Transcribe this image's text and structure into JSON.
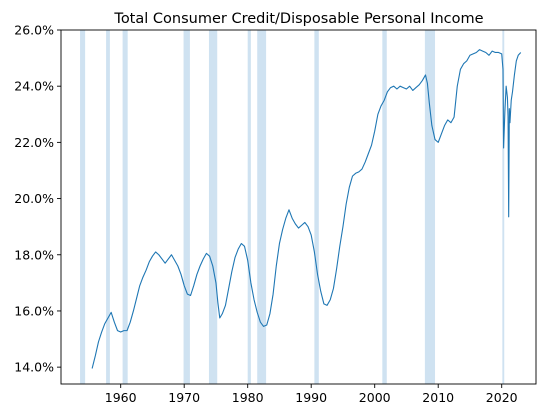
{
  "chart_data": {
    "type": "line",
    "title": "Total Consumer Credit/Disposable Personal Income",
    "xlabel": "",
    "ylabel": "",
    "xlim": [
      1950.6,
      2025.4
    ],
    "ylim": [
      13.4,
      26.0
    ],
    "x_ticks": [
      1960,
      1970,
      1980,
      1990,
      2000,
      2010,
      2020
    ],
    "x_tick_labels": [
      "1960",
      "1970",
      "1980",
      "1990",
      "2000",
      "2010",
      "2020"
    ],
    "y_ticks": [
      14,
      16,
      18,
      20,
      22,
      24,
      26
    ],
    "y_tick_labels": [
      "14.0%",
      "16.0%",
      "18.0%",
      "20.0%",
      "22.0%",
      "24.0%",
      "26.0%"
    ],
    "grid": false,
    "legend": "none",
    "colors": {
      "line": "#1f77b4",
      "recession": "#cfe2f1",
      "axes": "#000000"
    },
    "recessions": [
      [
        1953.6,
        1954.4
      ],
      [
        1957.7,
        1958.3
      ],
      [
        1960.3,
        1961.1
      ],
      [
        1969.9,
        1970.9
      ],
      [
        1973.9,
        1975.2
      ],
      [
        1980.0,
        1980.5
      ],
      [
        1981.5,
        1982.9
      ],
      [
        1990.5,
        1991.2
      ],
      [
        2001.2,
        2001.9
      ],
      [
        2007.9,
        2009.5
      ],
      [
        2020.1,
        2020.4
      ]
    ],
    "series": [
      {
        "x": [
          1955.5,
          1956.0,
          1956.5,
          1957.0,
          1957.5,
          1958.0,
          1958.5,
          1959.0,
          1959.5,
          1960.0,
          1960.5,
          1961.0,
          1961.5,
          1962.0,
          1962.5,
          1963.0,
          1963.5,
          1964.0,
          1964.5,
          1965.0,
          1965.5,
          1966.0,
          1966.5,
          1967.0,
          1967.5,
          1968.0,
          1968.5,
          1969.0,
          1969.5,
          1970.0,
          1970.5,
          1971.0,
          1971.5,
          1972.0,
          1972.5,
          1973.0,
          1973.5,
          1974.0,
          1974.5,
          1975.0,
          1975.3,
          1975.6,
          1976.0,
          1976.5,
          1977.0,
          1977.5,
          1978.0,
          1978.5,
          1979.0,
          1979.5,
          1980.0,
          1980.5,
          1981.0,
          1981.5,
          1982.0,
          1982.5,
          1983.0,
          1983.5,
          1984.0,
          1984.5,
          1985.0,
          1985.5,
          1986.0,
          1986.5,
          1987.0,
          1987.5,
          1988.0,
          1988.5,
          1989.0,
          1989.5,
          1990.0,
          1990.5,
          1991.0,
          1991.5,
          1992.0,
          1992.5,
          1993.0,
          1993.5,
          1994.0,
          1994.5,
          1995.0,
          1995.5,
          1996.0,
          1996.5,
          1997.0,
          1997.5,
          1998.0,
          1998.5,
          1999.0,
          1999.5,
          2000.0,
          2000.5,
          2001.0,
          2001.5,
          2002.0,
          2002.5,
          2003.0,
          2003.5,
          2004.0,
          2004.5,
          2005.0,
          2005.5,
          2006.0,
          2006.5,
          2007.0,
          2007.5,
          2008.0,
          2008.3,
          2008.6,
          2009.0,
          2009.5,
          2010.0,
          2010.5,
          2011.0,
          2011.5,
          2012.0,
          2012.5,
          2013.0,
          2013.5,
          2014.0,
          2014.5,
          2015.0,
          2015.5,
          2016.0,
          2016.5,
          2017.0,
          2017.5,
          2018.0,
          2018.5,
          2019.0,
          2019.5,
          2020.0,
          2020.2,
          2020.3,
          2020.5,
          2020.7,
          2020.9,
          2021.0,
          2021.1,
          2021.2,
          2021.3,
          2021.5,
          2021.7,
          2022.0,
          2022.3,
          2022.6,
          2023.0
        ],
        "values": [
          13.95,
          14.4,
          14.9,
          15.25,
          15.55,
          15.75,
          15.95,
          15.6,
          15.3,
          15.25,
          15.3,
          15.3,
          15.6,
          16.0,
          16.45,
          16.9,
          17.2,
          17.45,
          17.75,
          17.95,
          18.1,
          18.0,
          17.85,
          17.7,
          17.85,
          18.0,
          17.8,
          17.6,
          17.3,
          16.9,
          16.6,
          16.55,
          16.9,
          17.3,
          17.6,
          17.85,
          18.05,
          17.95,
          17.6,
          17.0,
          16.3,
          15.75,
          15.9,
          16.2,
          16.8,
          17.4,
          17.9,
          18.2,
          18.4,
          18.3,
          17.8,
          17.0,
          16.4,
          15.95,
          15.6,
          15.45,
          15.5,
          15.9,
          16.6,
          17.6,
          18.4,
          18.9,
          19.3,
          19.6,
          19.3,
          19.1,
          18.95,
          19.05,
          19.15,
          19.0,
          18.7,
          18.1,
          17.3,
          16.7,
          16.25,
          16.2,
          16.4,
          16.8,
          17.5,
          18.3,
          19.0,
          19.8,
          20.4,
          20.8,
          20.9,
          20.95,
          21.05,
          21.3,
          21.6,
          21.9,
          22.4,
          23.0,
          23.3,
          23.5,
          23.8,
          23.95,
          24.0,
          23.9,
          24.0,
          23.95,
          23.9,
          24.0,
          23.85,
          23.95,
          24.05,
          24.2,
          24.4,
          24.1,
          23.4,
          22.6,
          22.1,
          22.0,
          22.3,
          22.6,
          22.8,
          22.7,
          22.9,
          24.0,
          24.6,
          24.8,
          24.9,
          25.1,
          25.15,
          25.2,
          25.3,
          25.25,
          25.2,
          25.1,
          25.25,
          25.2,
          25.2,
          25.15,
          24.6,
          21.8,
          23.1,
          24.0,
          23.6,
          22.9,
          19.35,
          23.2,
          22.7,
          23.5,
          23.8,
          24.4,
          24.9,
          25.1,
          25.2
        ]
      }
    ]
  }
}
